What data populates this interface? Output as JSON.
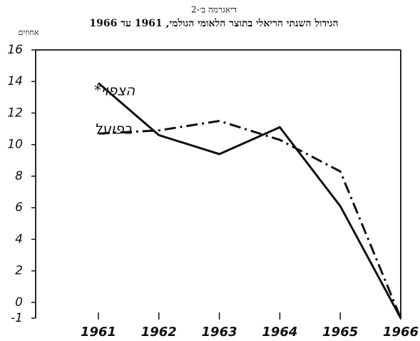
{
  "chart_data": {
    "type": "line",
    "label": "דיאגרמה ב׳-2",
    "title": "הגידול השנתי הריאלי בתוצר הלאומי הגולמי, 1961 עד 1966",
    "y_label": "אחוזים",
    "categories": [
      "1961",
      "1962",
      "1963",
      "1964",
      "1965",
      "1966"
    ],
    "series": [
      {
        "name": "הצפוי*",
        "color": "#111111",
        "dash": "solid",
        "values": [
          13.9,
          10.6,
          9.4,
          11.1,
          6.1,
          -1
        ]
      },
      {
        "name": "בפועל",
        "color": "#111111",
        "dash": "dashdot",
        "values": [
          10.7,
          10.9,
          11.5,
          10.3,
          8.3,
          -1
        ]
      }
    ],
    "ylim": [
      -1,
      16
    ],
    "yticks": [
      -1,
      0,
      2,
      4,
      6,
      8,
      10,
      12,
      14,
      16
    ]
  }
}
